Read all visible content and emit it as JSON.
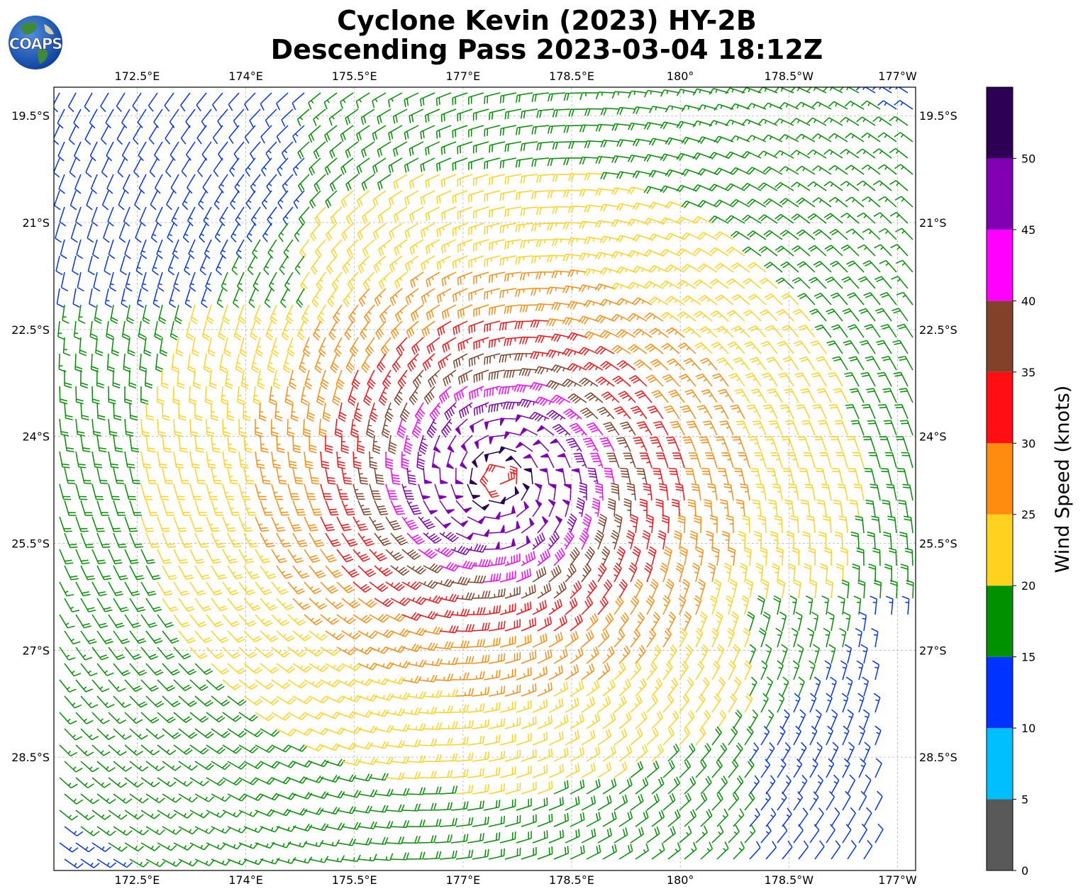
{
  "header": {
    "title_line1": "Cyclone Kevin (2023) HY-2B",
    "title_line2": "Descending Pass 2023-03-04 18:12Z",
    "logo_text": "COAPS"
  },
  "map": {
    "lon_labels": [
      "172.5°E",
      "174°E",
      "175.5°E",
      "177°E",
      "178.5°E",
      "180°",
      "178.5°W",
      "177°W"
    ],
    "lat_labels": [
      "19.5°S",
      "21°S",
      "22.5°S",
      "24°S",
      "25.5°S",
      "27°S",
      "28.5°S"
    ],
    "lon_values": [
      172.5,
      174,
      175.5,
      177,
      178.5,
      180,
      181.5,
      183
    ],
    "lat_values": [
      -19.5,
      -21,
      -22.5,
      -24,
      -25.5,
      -27,
      -28.5
    ],
    "lon_range": [
      171.35,
      183.25
    ],
    "lat_range": [
      -30.09,
      -19.1
    ],
    "grid": true,
    "gridline_style": "dashed",
    "storm_center_lon": 177.5,
    "storm_center_lat": -24.6
  },
  "colorbar": {
    "label": "Wind Speed (knots)",
    "ticks": [
      "0",
      "5",
      "10",
      "15",
      "20",
      "25",
      "30",
      "35",
      "40",
      "45",
      "50"
    ],
    "bins": [
      {
        "from": 0,
        "to": 5,
        "color": "#595959"
      },
      {
        "from": 5,
        "to": 10,
        "color": "#00bfff"
      },
      {
        "from": 10,
        "to": 15,
        "color": "#0033ff"
      },
      {
        "from": 15,
        "to": 20,
        "color": "#009100"
      },
      {
        "from": 20,
        "to": 25,
        "color": "#ffd21f"
      },
      {
        "from": 25,
        "to": 30,
        "color": "#ff8c0f"
      },
      {
        "from": 30,
        "to": 35,
        "color": "#ff0f14"
      },
      {
        "from": 35,
        "to": 40,
        "color": "#824128"
      },
      {
        "from": 40,
        "to": 45,
        "color": "#ff00ff"
      },
      {
        "from": 45,
        "to": 50,
        "color": "#8200b4"
      },
      {
        "from": 50,
        "to": 55,
        "color": "#2d0055"
      }
    ]
  }
}
